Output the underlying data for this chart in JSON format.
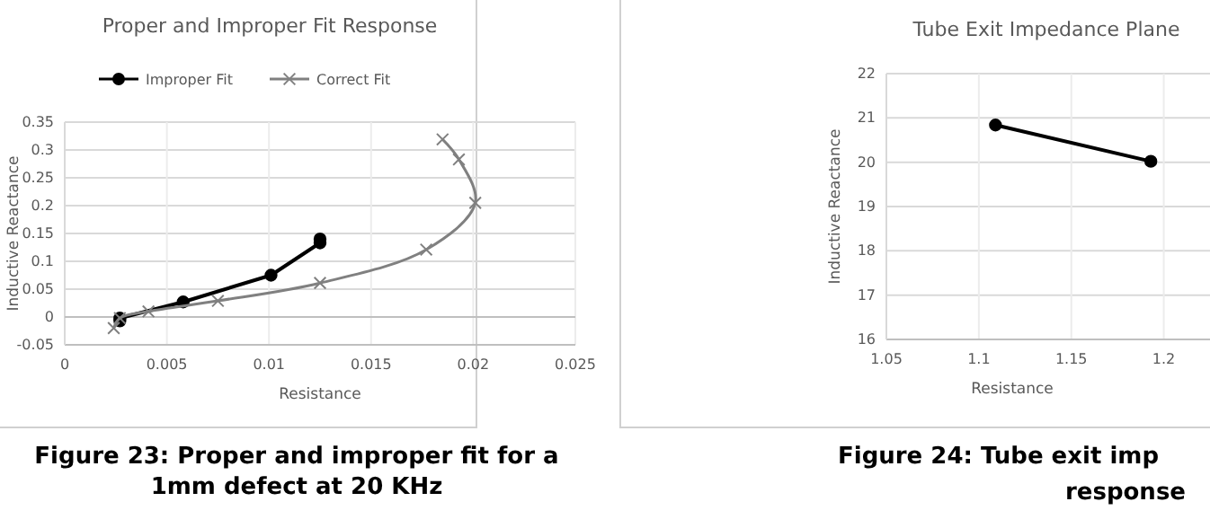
{
  "chart_data": [
    {
      "type": "line",
      "title": "Proper and Improper Fit Response",
      "xlabel": "Resistance",
      "ylabel": "Inductive Reactance",
      "xlim": [
        0,
        0.025
      ],
      "xticks": [
        0,
        0.005,
        0.01,
        0.015,
        0.02,
        0.025
      ],
      "ylim": [
        -0.05,
        0.35
      ],
      "yticks": [
        {
          "value": -0.05,
          "label": "-0.05"
        },
        0,
        0.05,
        0.1,
        0.15,
        0.2,
        0.25,
        0.3,
        0.35
      ],
      "grid": true,
      "legend": "top",
      "series": [
        {
          "name": "Improper Fit",
          "color": "#000000",
          "marker": "circle",
          "x": [
            0.0027,
            0.0027,
            0.0058,
            0.0101,
            0.0125,
            0.0125
          ],
          "values": [
            -0.007,
            -0.002,
            0.027,
            0.075,
            0.133,
            0.14
          ]
        },
        {
          "name": "Correct Fit",
          "color": "#808080",
          "marker": "cross",
          "x": [
            0.0024,
            0.0027,
            0.0041,
            0.0075,
            0.0125,
            0.0177,
            0.0201,
            0.0193,
            0.0185
          ],
          "values": [
            -0.02,
            -0.002,
            0.01,
            0.029,
            0.061,
            0.121,
            0.205,
            0.283,
            0.319
          ]
        }
      ],
      "annotations": [
        "Figure 23: Proper and improper fit for a 1mm defect at 20 KHz"
      ]
    },
    {
      "type": "line",
      "title": "Tube Exit Impedance Plane",
      "xlabel": "Resistance",
      "ylabel": "Inductive Reactance",
      "xlim": [
        1.05,
        1.225
      ],
      "xticks": [
        1.05,
        1.1,
        1.15,
        1.2
      ],
      "ylim": [
        16,
        22
      ],
      "yticks": [
        16,
        17,
        18,
        19,
        20,
        21,
        22
      ],
      "grid": true,
      "series": [
        {
          "color": "#000000",
          "marker": "circle",
          "x": [
            1.109,
            1.193
          ],
          "values": [
            20.84,
            20.02
          ]
        }
      ],
      "annotations": [
        "Figure 24: Tube exit imp",
        "response"
      ]
    }
  ]
}
